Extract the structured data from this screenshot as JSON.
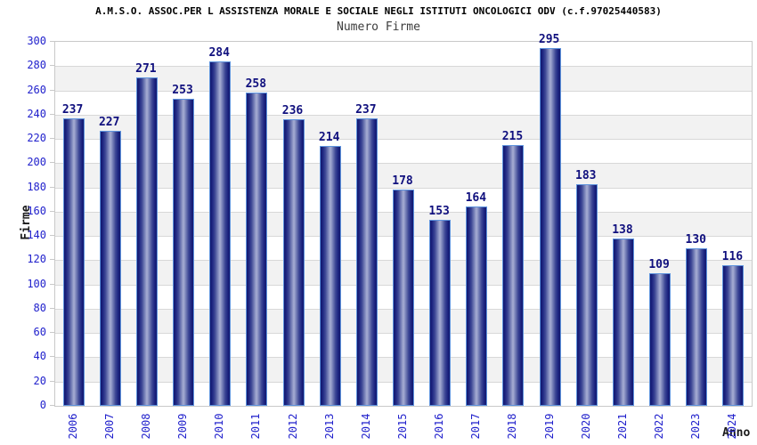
{
  "chart_data": {
    "type": "bar",
    "title": "A.M.S.O. ASSOC.PER L ASSISTENZA MORALE E SOCIALE NEGLI ISTITUTI ONCOLOGICI ODV (c.f.97025440583)",
    "subtitle": "Numero Firme",
    "xlabel": "Anno",
    "ylabel": "Firme",
    "categories": [
      "2006",
      "2007",
      "2008",
      "2009",
      "2010",
      "2011",
      "2012",
      "2013",
      "2014",
      "2015",
      "2016",
      "2017",
      "2018",
      "2019",
      "2020",
      "2021",
      "2022",
      "2023",
      "2024"
    ],
    "values": [
      237,
      227,
      271,
      253,
      284,
      258,
      236,
      214,
      237,
      178,
      153,
      164,
      215,
      295,
      183,
      138,
      109,
      130,
      116
    ],
    "ylim": [
      0,
      300
    ],
    "ytick_step": 20,
    "grid": true,
    "legend": "none",
    "colors": {
      "bar_edge_dark": "#12186e",
      "bar_center_light": "#a8aed4",
      "bar_outline": "#5e93dd",
      "tick_label_blue": "#2121cc",
      "value_label_navy": "#10107e",
      "stripe_gray": "#f2f2f2",
      "gridline": "#d8d8d8",
      "plot_border": "#c9c9c9",
      "title_color": "#000000",
      "subtitle_color": "#3c3c3c",
      "axis_title_color": "#1a1a1a",
      "background": "#ffffff"
    }
  }
}
